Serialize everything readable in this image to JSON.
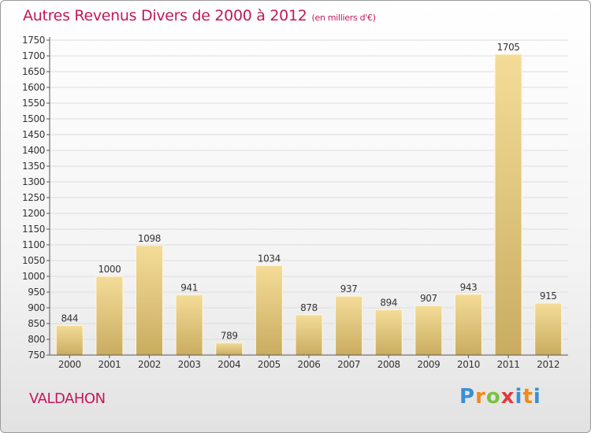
{
  "header": {
    "title": "Autres Revenus Divers de 2000 à 2012",
    "subtitle": "(en milliers d'€)"
  },
  "footer": {
    "city": "VALDAHON",
    "brand": "Proxiti"
  },
  "colors": {
    "title": "#c2185b",
    "bar_light": "#f4dc98",
    "bar_dark": "#c9ac60",
    "grid": "#dddddd",
    "logo_p": "#3b8fd6",
    "logo_r": "#f08a1c",
    "logo_o": "#7cc142",
    "logo_x": "#e03a3e",
    "logo_i": "#3b8fd6",
    "logo_t": "#f08a1c"
  },
  "chart_data": {
    "type": "bar",
    "title": "Autres Revenus Divers de 2000 à 2012",
    "subtitle": "(en milliers d'€)",
    "categories": [
      "2000",
      "2001",
      "2002",
      "2003",
      "2004",
      "2005",
      "2006",
      "2007",
      "2008",
      "2009",
      "2010",
      "2011",
      "2012"
    ],
    "values": [
      844,
      1000,
      1098,
      941,
      789,
      1034,
      878,
      937,
      894,
      907,
      943,
      1705,
      915
    ],
    "ylim": [
      750,
      1750
    ],
    "yticks": [
      750,
      800,
      850,
      900,
      950,
      1000,
      1050,
      1100,
      1150,
      1200,
      1250,
      1300,
      1350,
      1400,
      1450,
      1500,
      1550,
      1600,
      1650,
      1700,
      1750
    ],
    "grid": true,
    "legend": "none"
  }
}
